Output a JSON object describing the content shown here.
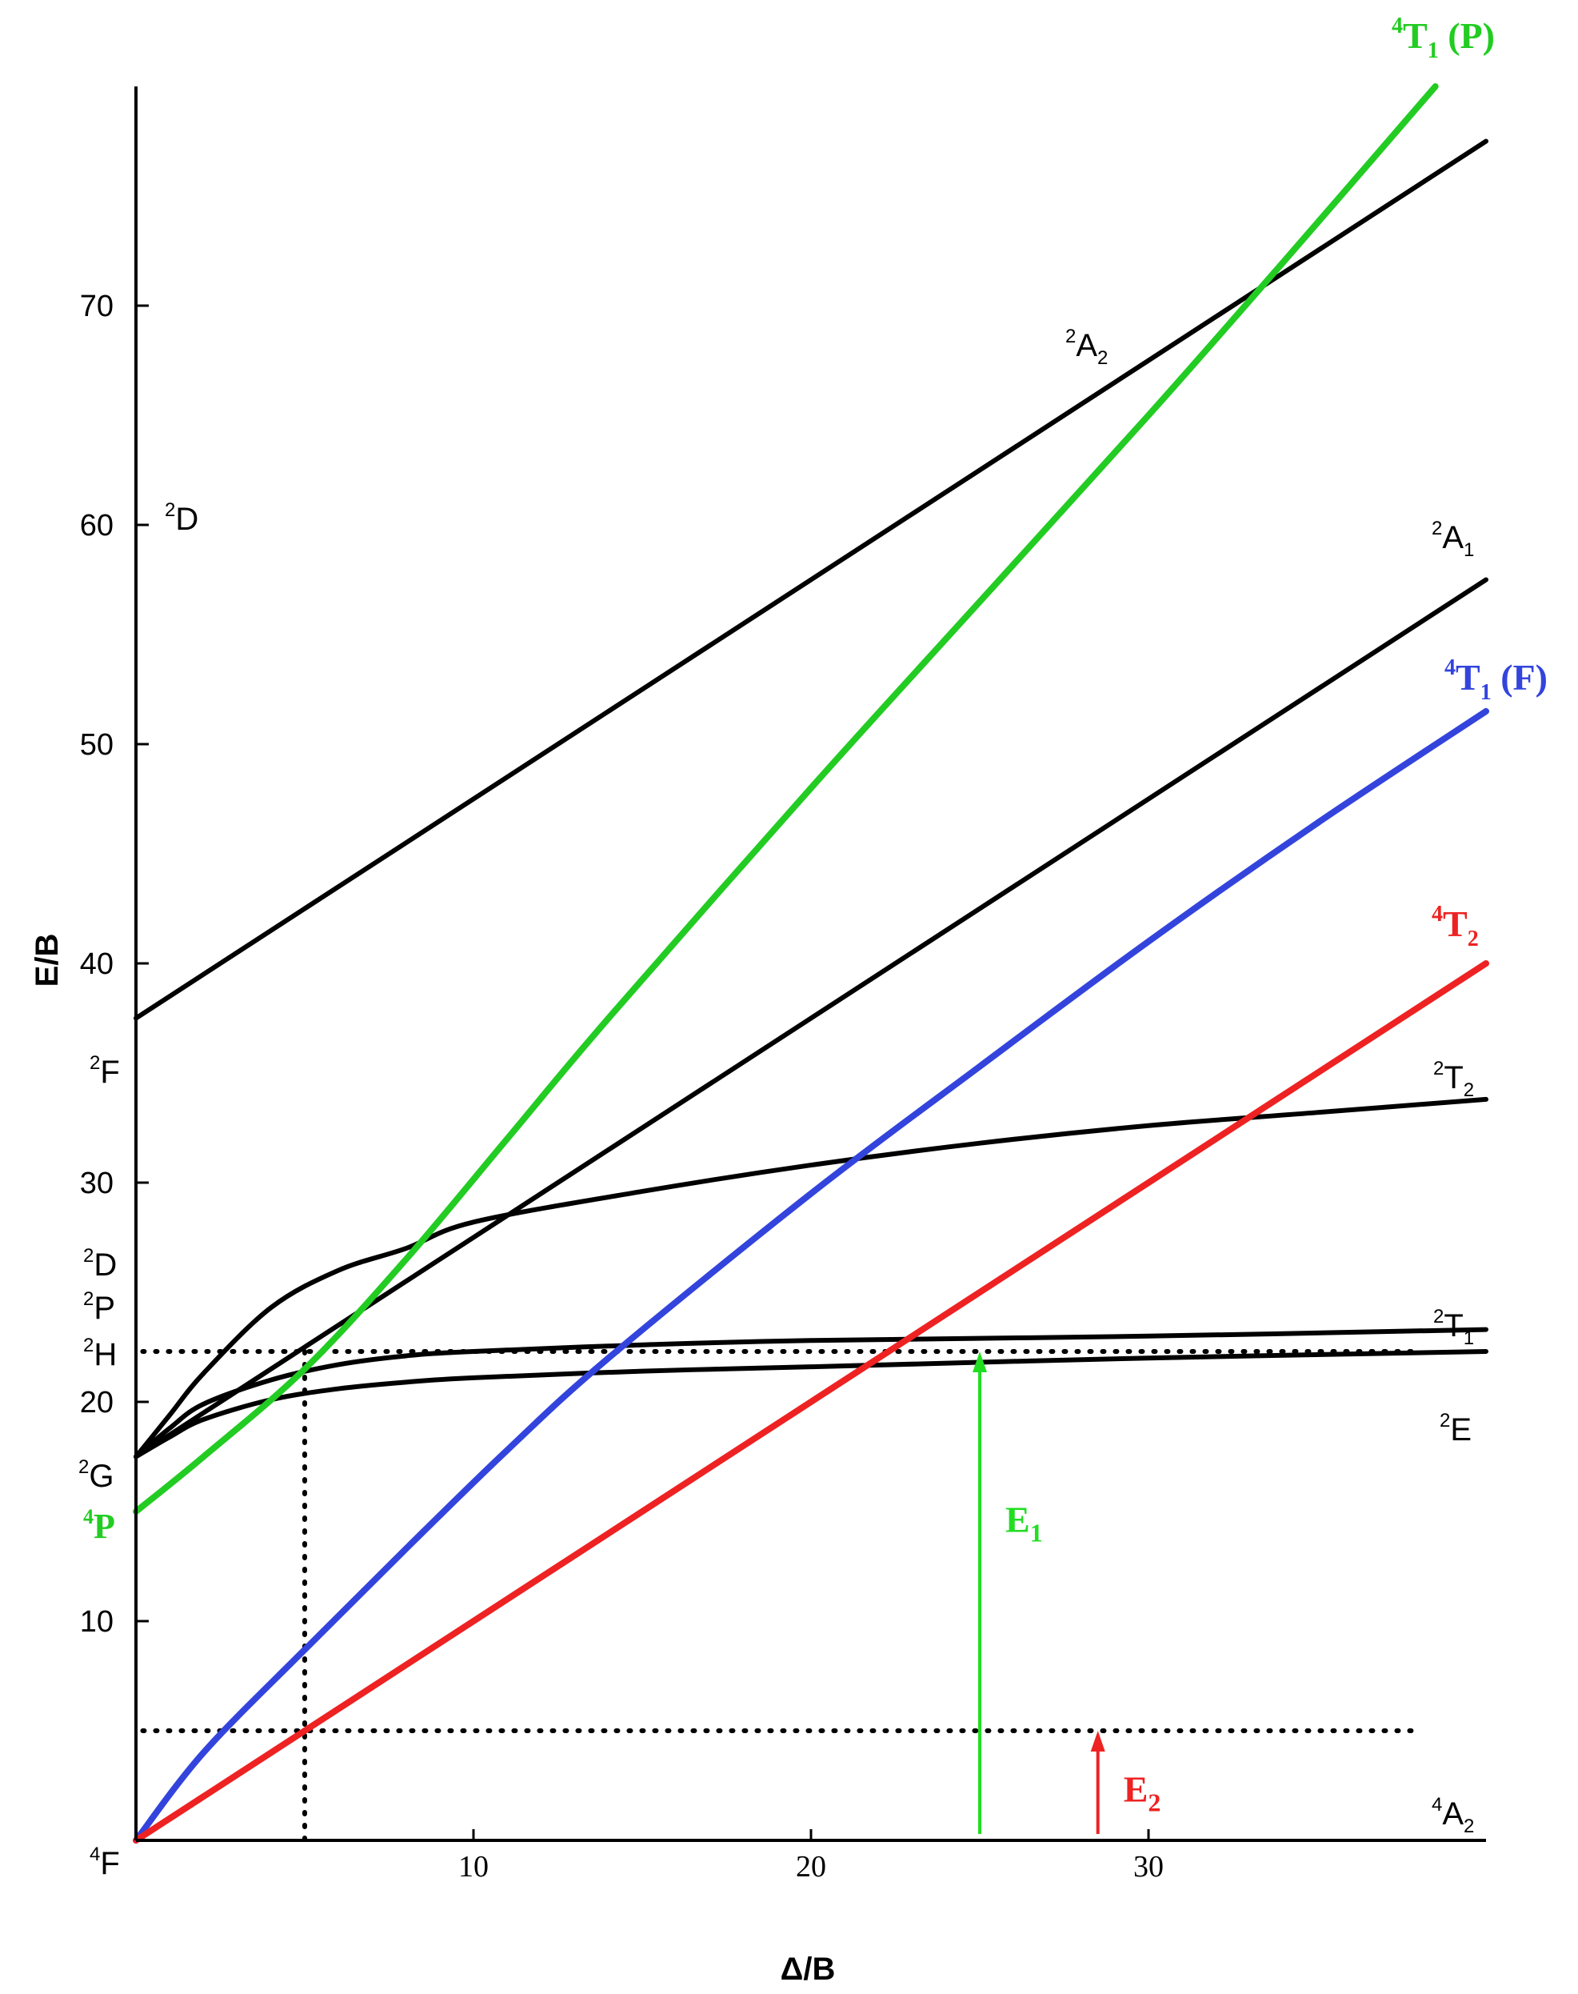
{
  "chart_data": {
    "type": "line",
    "title": "",
    "xlabel": "Δ/B",
    "ylabel": "E/B",
    "xlim": [
      0,
      40
    ],
    "ylim": [
      0,
      80
    ],
    "x_ticks": [
      "10",
      "20",
      "30"
    ],
    "y_ticks": [
      "10",
      "20",
      "30",
      "40",
      "50",
      "60",
      "70"
    ],
    "series": [
      {
        "name": "⁴T₁ (P)",
        "color": "#22cc22",
        "x": [
          0,
          2,
          5,
          8,
          11,
          14,
          20,
          25,
          30,
          34,
          38.5
        ],
        "y": [
          15,
          17.5,
          21.5,
          26.5,
          32,
          37.5,
          48,
          56.5,
          65,
          72,
          80
        ]
      },
      {
        "name": "²A₂",
        "color": "#000000",
        "x": [
          0,
          10,
          20,
          30,
          40
        ],
        "y": [
          37.5,
          47.5,
          57.5,
          67.5,
          77.5
        ]
      },
      {
        "name": "²A₁",
        "color": "#000000",
        "x": [
          0,
          1,
          3,
          5,
          8,
          12,
          20,
          30,
          40
        ],
        "y": [
          17.5,
          18.5,
          20.5,
          22.5,
          25.5,
          29.5,
          37.5,
          47.5,
          57.5
        ]
      },
      {
        "name": "⁴T₁ (F)",
        "color": "#3344dd",
        "x": [
          0,
          2,
          5,
          8,
          11,
          14,
          20,
          25,
          30,
          35,
          40
        ],
        "y": [
          0,
          4,
          8.7,
          13.3,
          17.8,
          22,
          29.5,
          35.3,
          41,
          46.4,
          51.5
        ]
      },
      {
        "name": "⁴T₂",
        "color": "#ee2222",
        "x": [
          0,
          10,
          20,
          30,
          40
        ],
        "y": [
          0,
          10,
          20,
          30,
          40
        ]
      },
      {
        "name": "²T₂",
        "color": "#000000",
        "x": [
          0,
          1,
          2,
          4,
          6,
          8,
          10,
          15,
          20,
          25,
          30,
          35,
          40
        ],
        "y": [
          17.5,
          19.4,
          21.3,
          24.3,
          26.0,
          27.0,
          28.2,
          29.6,
          30.8,
          31.8,
          32.6,
          33.2,
          33.8
        ]
      },
      {
        "name": "²T₁",
        "color": "#000000",
        "x": [
          0,
          1,
          2,
          4,
          6,
          8,
          10,
          15,
          20,
          30,
          40
        ],
        "y": [
          17.5,
          18.8,
          19.9,
          21.0,
          21.7,
          22.1,
          22.3,
          22.6,
          22.8,
          23.0,
          23.3
        ]
      },
      {
        "name": "²E",
        "color": "#000000",
        "x": [
          0,
          1,
          2,
          4,
          6,
          8,
          10,
          15,
          20,
          30,
          40
        ],
        "y": [
          17.5,
          18.4,
          19.2,
          20.1,
          20.6,
          20.9,
          21.1,
          21.4,
          21.6,
          22.0,
          22.3
        ]
      }
    ],
    "free_ion_terms": [
      {
        "label": "F",
        "spin": "4",
        "y": 0
      },
      {
        "label": "P",
        "spin": "4",
        "y": 15
      },
      {
        "label": "G",
        "spin": "2",
        "y": 17.5
      },
      {
        "label": "H",
        "spin": "2",
        "y": 22.4
      },
      {
        "label": "P",
        "spin": "2",
        "y": 24.8
      },
      {
        "label": "D",
        "spin": "2",
        "y": 26.8
      },
      {
        "label": "F",
        "spin": "2",
        "y": 35.8
      },
      {
        "label": "D",
        "spin": "2",
        "y": 60
      }
    ],
    "state_labels": [
      {
        "name": "4T1P",
        "spin": "4",
        "main": "T",
        "sub": "1",
        "suffix": " (P)",
        "color": "#22cc22"
      },
      {
        "name": "2A2",
        "spin": "2",
        "main": "A",
        "sub": "2",
        "suffix": "",
        "color": "#000000"
      },
      {
        "name": "2A1",
        "spin": "2",
        "main": "A",
        "sub": "1",
        "suffix": "",
        "color": "#000000"
      },
      {
        "name": "4T1F",
        "spin": "4",
        "main": "T",
        "sub": "1",
        "suffix": " (F)",
        "color": "#3344dd"
      },
      {
        "name": "4T2",
        "spin": "4",
        "main": "T",
        "sub": "2",
        "suffix": "",
        "color": "#ee2222"
      },
      {
        "name": "2T2",
        "spin": "2",
        "main": "T",
        "sub": "2",
        "suffix": "",
        "color": "#000000"
      },
      {
        "name": "2T1",
        "spin": "2",
        "main": "T",
        "sub": "1",
        "suffix": "",
        "color": "#000000"
      },
      {
        "name": "2E",
        "spin": "2",
        "main": "E",
        "sub": "",
        "suffix": "",
        "color": "#000000"
      },
      {
        "name": "4A2",
        "spin": "4",
        "main": "A",
        "sub": "2",
        "suffix": "",
        "color": "#000000"
      }
    ],
    "guide_lines": {
      "x_at": 5,
      "y_levels": [
        5,
        22.3
      ]
    },
    "transitions": [
      {
        "label": "E",
        "sub": "1",
        "color": "#22dd22",
        "x": 25,
        "from": 0,
        "to": 22.3
      },
      {
        "label": "E",
        "sub": "2",
        "color": "#ee2222",
        "x": 28.5,
        "from": 0,
        "to": 5
      }
    ]
  }
}
